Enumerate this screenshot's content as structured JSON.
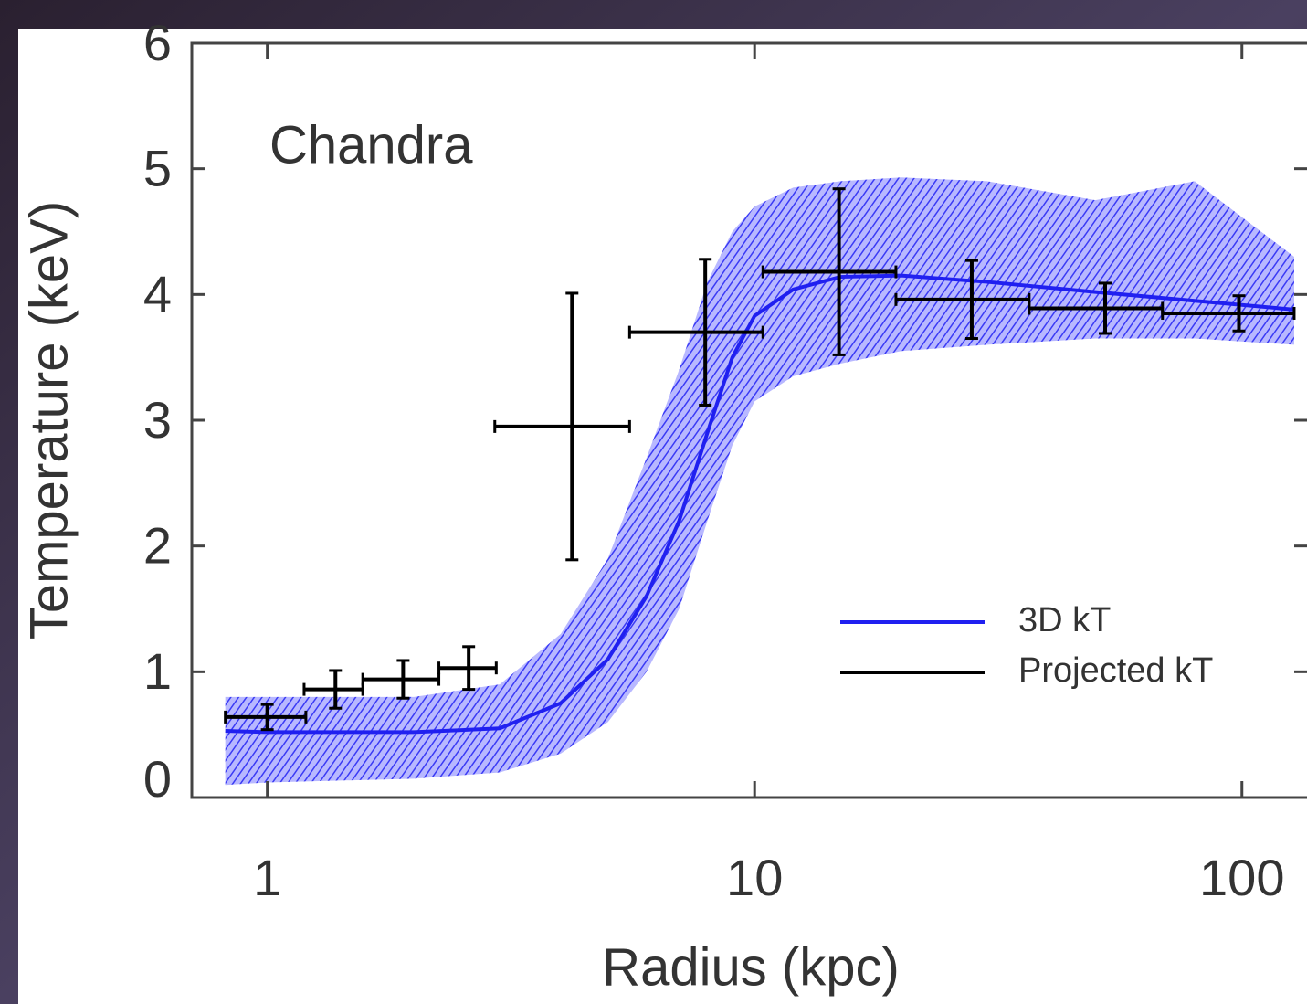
{
  "chart_data": {
    "type": "line",
    "annotation": "Chandra",
    "xlabel": "Radius (kpc)",
    "ylabel": "Temperature (keV)",
    "xscale": "log",
    "xlim": [
      0.7,
      136
    ],
    "xticks": [
      1,
      10,
      100
    ],
    "ylim": [
      0,
      6
    ],
    "yticks": [
      0,
      1,
      2,
      3,
      4,
      5,
      6
    ],
    "legend": "lower right",
    "series": [
      {
        "name": "3D kT",
        "color": "#2020f0",
        "x": [
          0.82,
          1,
          2,
          3,
          4,
          5,
          6,
          7,
          8,
          9,
          10,
          12,
          15,
          20,
          30,
          50,
          80,
          128
        ],
        "values": [
          0.53,
          0.52,
          0.52,
          0.55,
          0.75,
          1.1,
          1.6,
          2.2,
          2.9,
          3.5,
          3.83,
          4.04,
          4.14,
          4.15,
          4.1,
          4.02,
          3.95,
          3.88
        ],
        "band_low": [
          0.1,
          0.12,
          0.15,
          0.2,
          0.35,
          0.6,
          1.0,
          1.5,
          2.2,
          2.8,
          3.15,
          3.35,
          3.45,
          3.55,
          3.6,
          3.65,
          3.65,
          3.6
        ],
        "band_high": [
          0.8,
          0.8,
          0.8,
          0.9,
          1.3,
          1.9,
          2.7,
          3.4,
          4.1,
          4.5,
          4.7,
          4.85,
          4.9,
          4.93,
          4.9,
          4.75,
          4.9,
          4.3
        ]
      },
      {
        "name": "Projected kT",
        "color": "#000000",
        "x": [
          1.0,
          1.38,
          1.9,
          2.59,
          4.22,
          7.92,
          14.9,
          27.9,
          52.4,
          98.6
        ],
        "x_low": [
          0.82,
          1.19,
          1.57,
          2.25,
          2.93,
          5.54,
          10.4,
          19.5,
          36.6,
          68.7
        ],
        "x_high": [
          1.2,
          1.57,
          2.25,
          2.95,
          5.54,
          10.4,
          19.5,
          36.6,
          68.7,
          128
        ],
        "values": [
          0.64,
          0.86,
          0.94,
          1.03,
          2.95,
          3.7,
          4.18,
          3.96,
          3.89,
          3.85
        ],
        "errors": [
          0.1,
          0.15,
          0.15,
          0.17,
          1.06,
          0.58,
          0.66,
          0.31,
          0.2,
          0.14
        ]
      }
    ]
  }
}
